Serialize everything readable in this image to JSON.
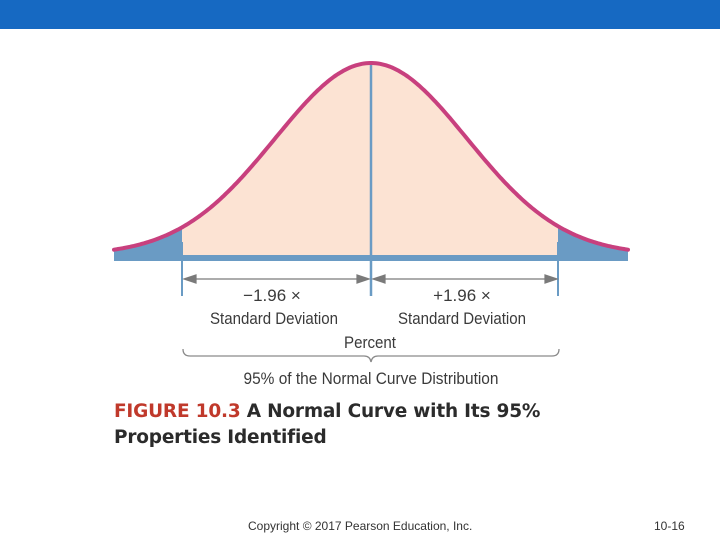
{
  "header": {
    "bar_color": "#1669c2"
  },
  "diagram": {
    "left_label_line1": "−1.96 ×",
    "left_label_line2": "Standard Deviation",
    "right_label_line1": "+1.96 ×",
    "right_label_line2": "Standard Deviation",
    "center_label": "Percent",
    "brace_label": "95% of the Normal Curve Distribution",
    "colors": {
      "curve": "#c8407e",
      "center_fill": "#fce3d3",
      "tail_fill": "#6a9bc4",
      "baseline": "#6a9bc4",
      "center_line": "#6a9bc4",
      "guides": "#6a9bc4",
      "brace": "#8a8a8a"
    }
  },
  "caption": {
    "figure_number": "FIGURE 10.3",
    "title": "A Normal Curve with Its 95% Properties Identified"
  },
  "footer": {
    "copyright": "Copyright © 2017 Pearson Education, Inc.",
    "page_number": "10-16"
  }
}
